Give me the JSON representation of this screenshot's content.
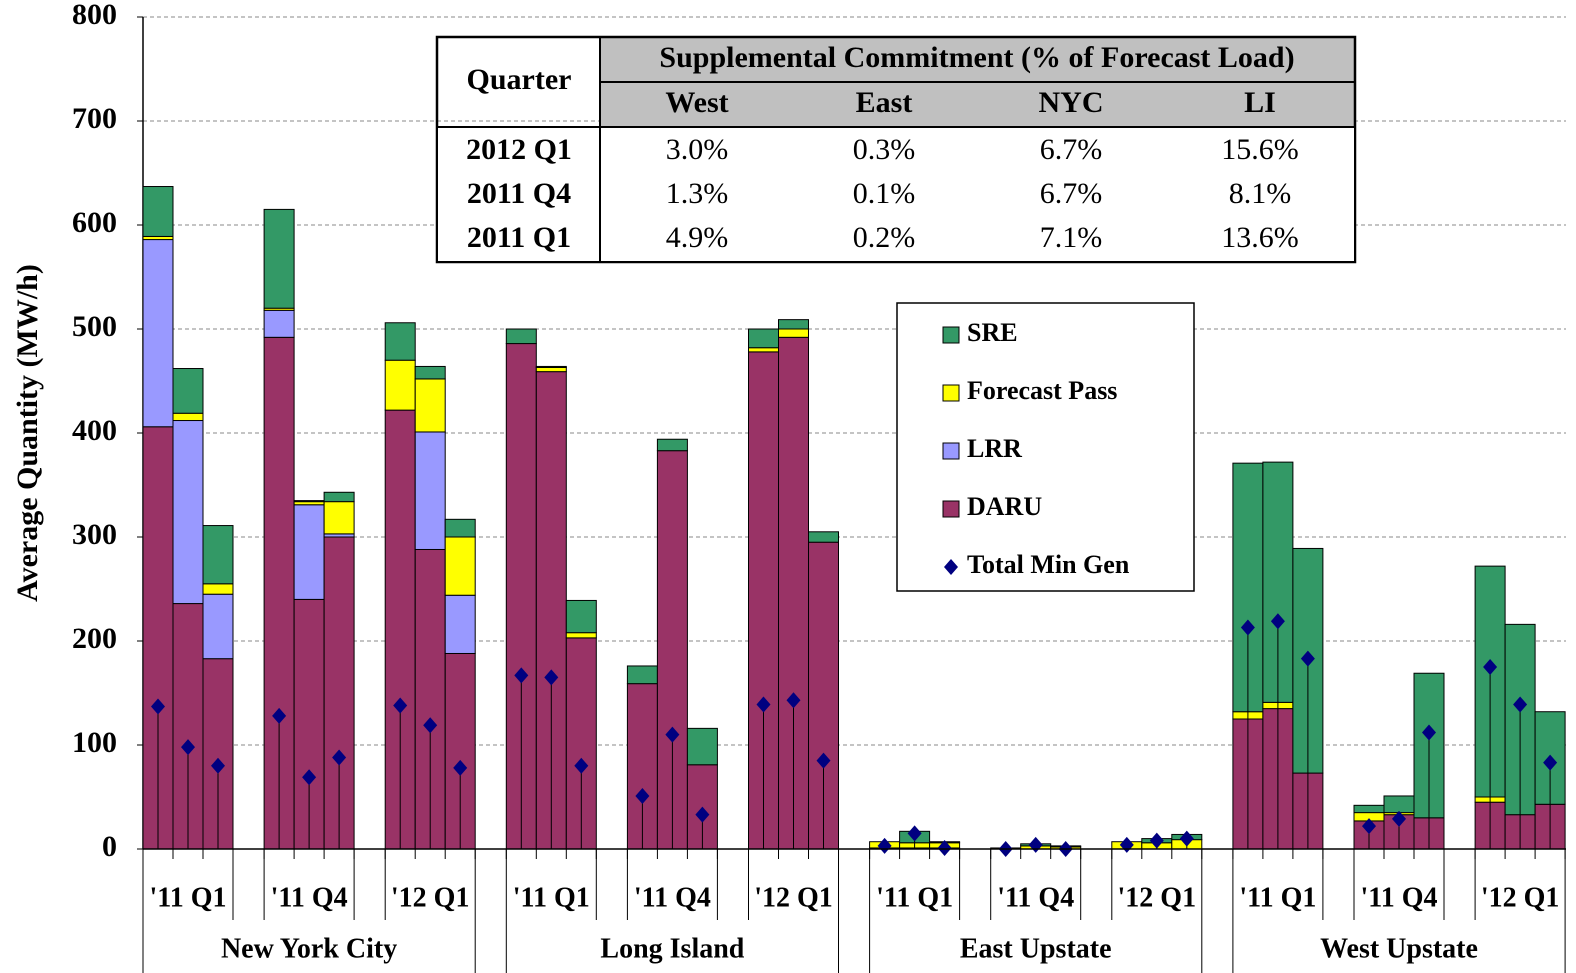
{
  "chart_data": {
    "type": "stacked_bar",
    "y_label": "Average Quantity (MW/h)",
    "ylim": [
      0,
      800
    ],
    "yticks": [
      0,
      100,
      200,
      300,
      400,
      500,
      600,
      700,
      800
    ],
    "grid": true,
    "categories": [
      null,
      "'11 Q1",
      null,
      null,
      "'11 Q4",
      null,
      null,
      "'12 Q1",
      null,
      null,
      "'11 Q1",
      null,
      null,
      "'11 Q4",
      null,
      null,
      "'12 Q1",
      null,
      null,
      "'11 Q1",
      null,
      null,
      "'11 Q4",
      null,
      null,
      "'12 Q1",
      null,
      null,
      "'11 Q1",
      null,
      null,
      "'11 Q4",
      null,
      null,
      "'12 Q1",
      null
    ],
    "groups": [
      "New York City",
      "Long Island",
      "East Upstate",
      "West Upstate"
    ],
    "series": [
      {
        "name": "DARU",
        "color": "#993366",
        "values": [
          406,
          236,
          183,
          492,
          240,
          300,
          422,
          288,
          188,
          486,
          459,
          203,
          159,
          383,
          81,
          478,
          492,
          295,
          1,
          1,
          1,
          0,
          0,
          0,
          0,
          0,
          0,
          125,
          135,
          73,
          27,
          33,
          30,
          45,
          33,
          43
        ]
      },
      {
        "name": "LRR",
        "color": "#9999ff",
        "values": [
          180,
          176,
          62,
          26,
          91,
          3,
          0,
          113,
          56,
          0,
          0,
          0,
          0,
          0,
          0,
          0,
          0,
          0,
          0,
          0,
          0,
          0,
          0,
          0,
          0,
          0,
          0,
          0,
          0,
          0,
          0,
          0,
          0,
          0,
          0,
          0
        ]
      },
      {
        "name": "Forecast Pass",
        "color": "#ffff00",
        "values": [
          3,
          7,
          10,
          2,
          3,
          31,
          48,
          51,
          56,
          0,
          4,
          5,
          0,
          0,
          0,
          4,
          8,
          0,
          6,
          5,
          5,
          1,
          3,
          2,
          7,
          6,
          9,
          7,
          6,
          0,
          8,
          2,
          0,
          5,
          0,
          0
        ]
      },
      {
        "name": "SRE",
        "color": "#339966",
        "values": [
          48,
          43,
          56,
          95,
          1,
          9,
          36,
          12,
          17,
          14,
          1,
          31,
          17,
          11,
          35,
          18,
          9,
          10,
          0,
          11,
          1,
          0,
          2,
          1,
          0,
          4,
          5,
          239,
          231,
          216,
          7,
          16,
          139,
          222,
          183,
          89
        ]
      }
    ],
    "markers": {
      "name": "Total Min Gen",
      "color": "#000080",
      "values": [
        137,
        98,
        80,
        128,
        69,
        88,
        138,
        119,
        78,
        167,
        165,
        80,
        51,
        110,
        33,
        139,
        143,
        85,
        3,
        15,
        1,
        0,
        4,
        0,
        4,
        8,
        10,
        213,
        219,
        183,
        22,
        29,
        112,
        175,
        139,
        83
      ]
    },
    "table": {
      "corner": "Quarter",
      "title": "Supplemental Commitment (% of Forecast Load)",
      "columns": [
        "West",
        "East",
        "NYC",
        "LI"
      ],
      "rows": [
        [
          "2012 Q1",
          "3.0%",
          "0.3%",
          "6.7%",
          "15.6%"
        ],
        [
          "2011 Q4",
          "1.3%",
          "0.1%",
          "6.7%",
          "8.1%"
        ],
        [
          "2011 Q1",
          "4.9%",
          "0.2%",
          "7.1%",
          "13.6%"
        ]
      ]
    }
  }
}
